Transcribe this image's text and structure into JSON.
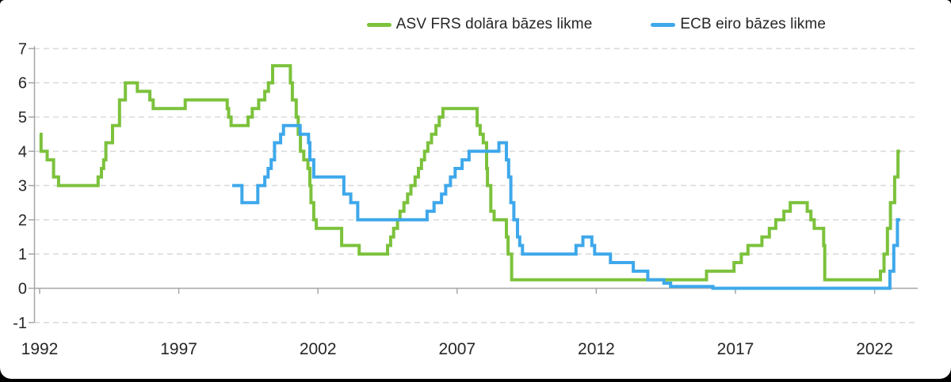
{
  "chart_data": {
    "type": "line",
    "subtype": "step-after",
    "title": "",
    "xlabel": "",
    "ylabel": "",
    "xlim": [
      1992,
      2023.6
    ],
    "ylim": [
      -1,
      7
    ],
    "x_ticks": [
      1992,
      1997,
      2002,
      2007,
      2012,
      2017,
      2022
    ],
    "y_ticks": [
      -1,
      0,
      1,
      2,
      3,
      4,
      5,
      6,
      7
    ],
    "grid": "horizontal-dashed",
    "legend_position": "top-right",
    "end_year": 2022.92,
    "series": [
      {
        "name": "ASV FRS dolāra bāzes likme",
        "color": "#7CC23C",
        "points": [
          [
            1992.0,
            4.5
          ],
          [
            1992.05,
            4.0
          ],
          [
            1992.27,
            3.75
          ],
          [
            1992.5,
            3.25
          ],
          [
            1992.68,
            3.0
          ],
          [
            1994.1,
            3.25
          ],
          [
            1994.22,
            3.5
          ],
          [
            1994.3,
            3.75
          ],
          [
            1994.38,
            4.25
          ],
          [
            1994.62,
            4.75
          ],
          [
            1994.87,
            5.5
          ],
          [
            1995.08,
            6.0
          ],
          [
            1995.51,
            5.75
          ],
          [
            1995.96,
            5.5
          ],
          [
            1996.08,
            5.25
          ],
          [
            1997.23,
            5.5
          ],
          [
            1998.74,
            5.25
          ],
          [
            1998.79,
            5.0
          ],
          [
            1998.88,
            4.75
          ],
          [
            1999.49,
            5.0
          ],
          [
            1999.64,
            5.25
          ],
          [
            1999.87,
            5.5
          ],
          [
            2000.09,
            5.75
          ],
          [
            2000.22,
            6.0
          ],
          [
            2000.37,
            6.5
          ],
          [
            2001.01,
            6.0
          ],
          [
            2001.08,
            5.5
          ],
          [
            2001.22,
            5.0
          ],
          [
            2001.29,
            4.5
          ],
          [
            2001.37,
            4.0
          ],
          [
            2001.49,
            3.75
          ],
          [
            2001.64,
            3.5
          ],
          [
            2001.71,
            3.0
          ],
          [
            2001.75,
            2.5
          ],
          [
            2001.85,
            2.0
          ],
          [
            2001.94,
            1.75
          ],
          [
            2002.85,
            1.25
          ],
          [
            2003.48,
            1.0
          ],
          [
            2004.5,
            1.25
          ],
          [
            2004.61,
            1.5
          ],
          [
            2004.72,
            1.75
          ],
          [
            2004.86,
            2.0
          ],
          [
            2004.95,
            2.25
          ],
          [
            2005.09,
            2.5
          ],
          [
            2005.22,
            2.75
          ],
          [
            2005.34,
            3.0
          ],
          [
            2005.49,
            3.25
          ],
          [
            2005.61,
            3.5
          ],
          [
            2005.72,
            3.75
          ],
          [
            2005.83,
            4.0
          ],
          [
            2005.95,
            4.25
          ],
          [
            2006.08,
            4.5
          ],
          [
            2006.24,
            4.75
          ],
          [
            2006.36,
            5.0
          ],
          [
            2006.49,
            5.25
          ],
          [
            2007.72,
            4.75
          ],
          [
            2007.83,
            4.5
          ],
          [
            2007.94,
            4.25
          ],
          [
            2008.06,
            3.5
          ],
          [
            2008.09,
            3.0
          ],
          [
            2008.21,
            2.25
          ],
          [
            2008.33,
            2.0
          ],
          [
            2008.77,
            1.5
          ],
          [
            2008.83,
            1.0
          ],
          [
            2008.96,
            0.25
          ],
          [
            2015.96,
            0.5
          ],
          [
            2016.95,
            0.75
          ],
          [
            2017.21,
            1.0
          ],
          [
            2017.45,
            1.25
          ],
          [
            2017.95,
            1.5
          ],
          [
            2018.22,
            1.75
          ],
          [
            2018.45,
            2.0
          ],
          [
            2018.74,
            2.25
          ],
          [
            2018.97,
            2.5
          ],
          [
            2019.58,
            2.25
          ],
          [
            2019.71,
            2.0
          ],
          [
            2019.83,
            1.75
          ],
          [
            2020.17,
            1.25
          ],
          [
            2020.21,
            0.25
          ],
          [
            2022.21,
            0.5
          ],
          [
            2022.34,
            1.0
          ],
          [
            2022.46,
            1.75
          ],
          [
            2022.57,
            2.5
          ],
          [
            2022.72,
            3.25
          ],
          [
            2022.84,
            4.0
          ]
        ]
      },
      {
        "name": "ECB eiro bāzes likme",
        "color": "#3EA8EB",
        "points": [
          [
            1998.92,
            3.0
          ],
          [
            1999.27,
            2.5
          ],
          [
            1999.84,
            3.0
          ],
          [
            2000.09,
            3.25
          ],
          [
            2000.21,
            3.5
          ],
          [
            2000.32,
            3.75
          ],
          [
            2000.44,
            4.25
          ],
          [
            2000.66,
            4.5
          ],
          [
            2000.76,
            4.75
          ],
          [
            2001.36,
            4.5
          ],
          [
            2001.66,
            4.25
          ],
          [
            2001.71,
            3.75
          ],
          [
            2001.85,
            3.25
          ],
          [
            2002.93,
            2.75
          ],
          [
            2003.18,
            2.5
          ],
          [
            2003.43,
            2.0
          ],
          [
            2005.92,
            2.25
          ],
          [
            2006.17,
            2.5
          ],
          [
            2006.44,
            2.75
          ],
          [
            2006.59,
            3.0
          ],
          [
            2006.76,
            3.25
          ],
          [
            2006.93,
            3.5
          ],
          [
            2007.18,
            3.75
          ],
          [
            2007.43,
            4.0
          ],
          [
            2008.5,
            4.25
          ],
          [
            2008.77,
            3.75
          ],
          [
            2008.85,
            3.25
          ],
          [
            2008.93,
            2.5
          ],
          [
            2009.04,
            2.0
          ],
          [
            2009.17,
            1.5
          ],
          [
            2009.25,
            1.25
          ],
          [
            2009.35,
            1.0
          ],
          [
            2011.27,
            1.25
          ],
          [
            2011.52,
            1.5
          ],
          [
            2011.84,
            1.25
          ],
          [
            2011.94,
            1.0
          ],
          [
            2012.51,
            0.75
          ],
          [
            2013.33,
            0.5
          ],
          [
            2013.85,
            0.25
          ],
          [
            2014.43,
            0.15
          ],
          [
            2014.67,
            0.05
          ],
          [
            2016.19,
            0.0
          ],
          [
            2022.55,
            0.5
          ],
          [
            2022.69,
            1.25
          ],
          [
            2022.82,
            2.0
          ]
        ]
      }
    ]
  },
  "colors": {
    "fed_green": "#7CC23C",
    "ecb_blue": "#3EA8EB",
    "axis_gray": "#A6A6A6",
    "grid_gray": "#DBDBDB",
    "text_dark": "#262626",
    "background": "#FFFFFF"
  }
}
